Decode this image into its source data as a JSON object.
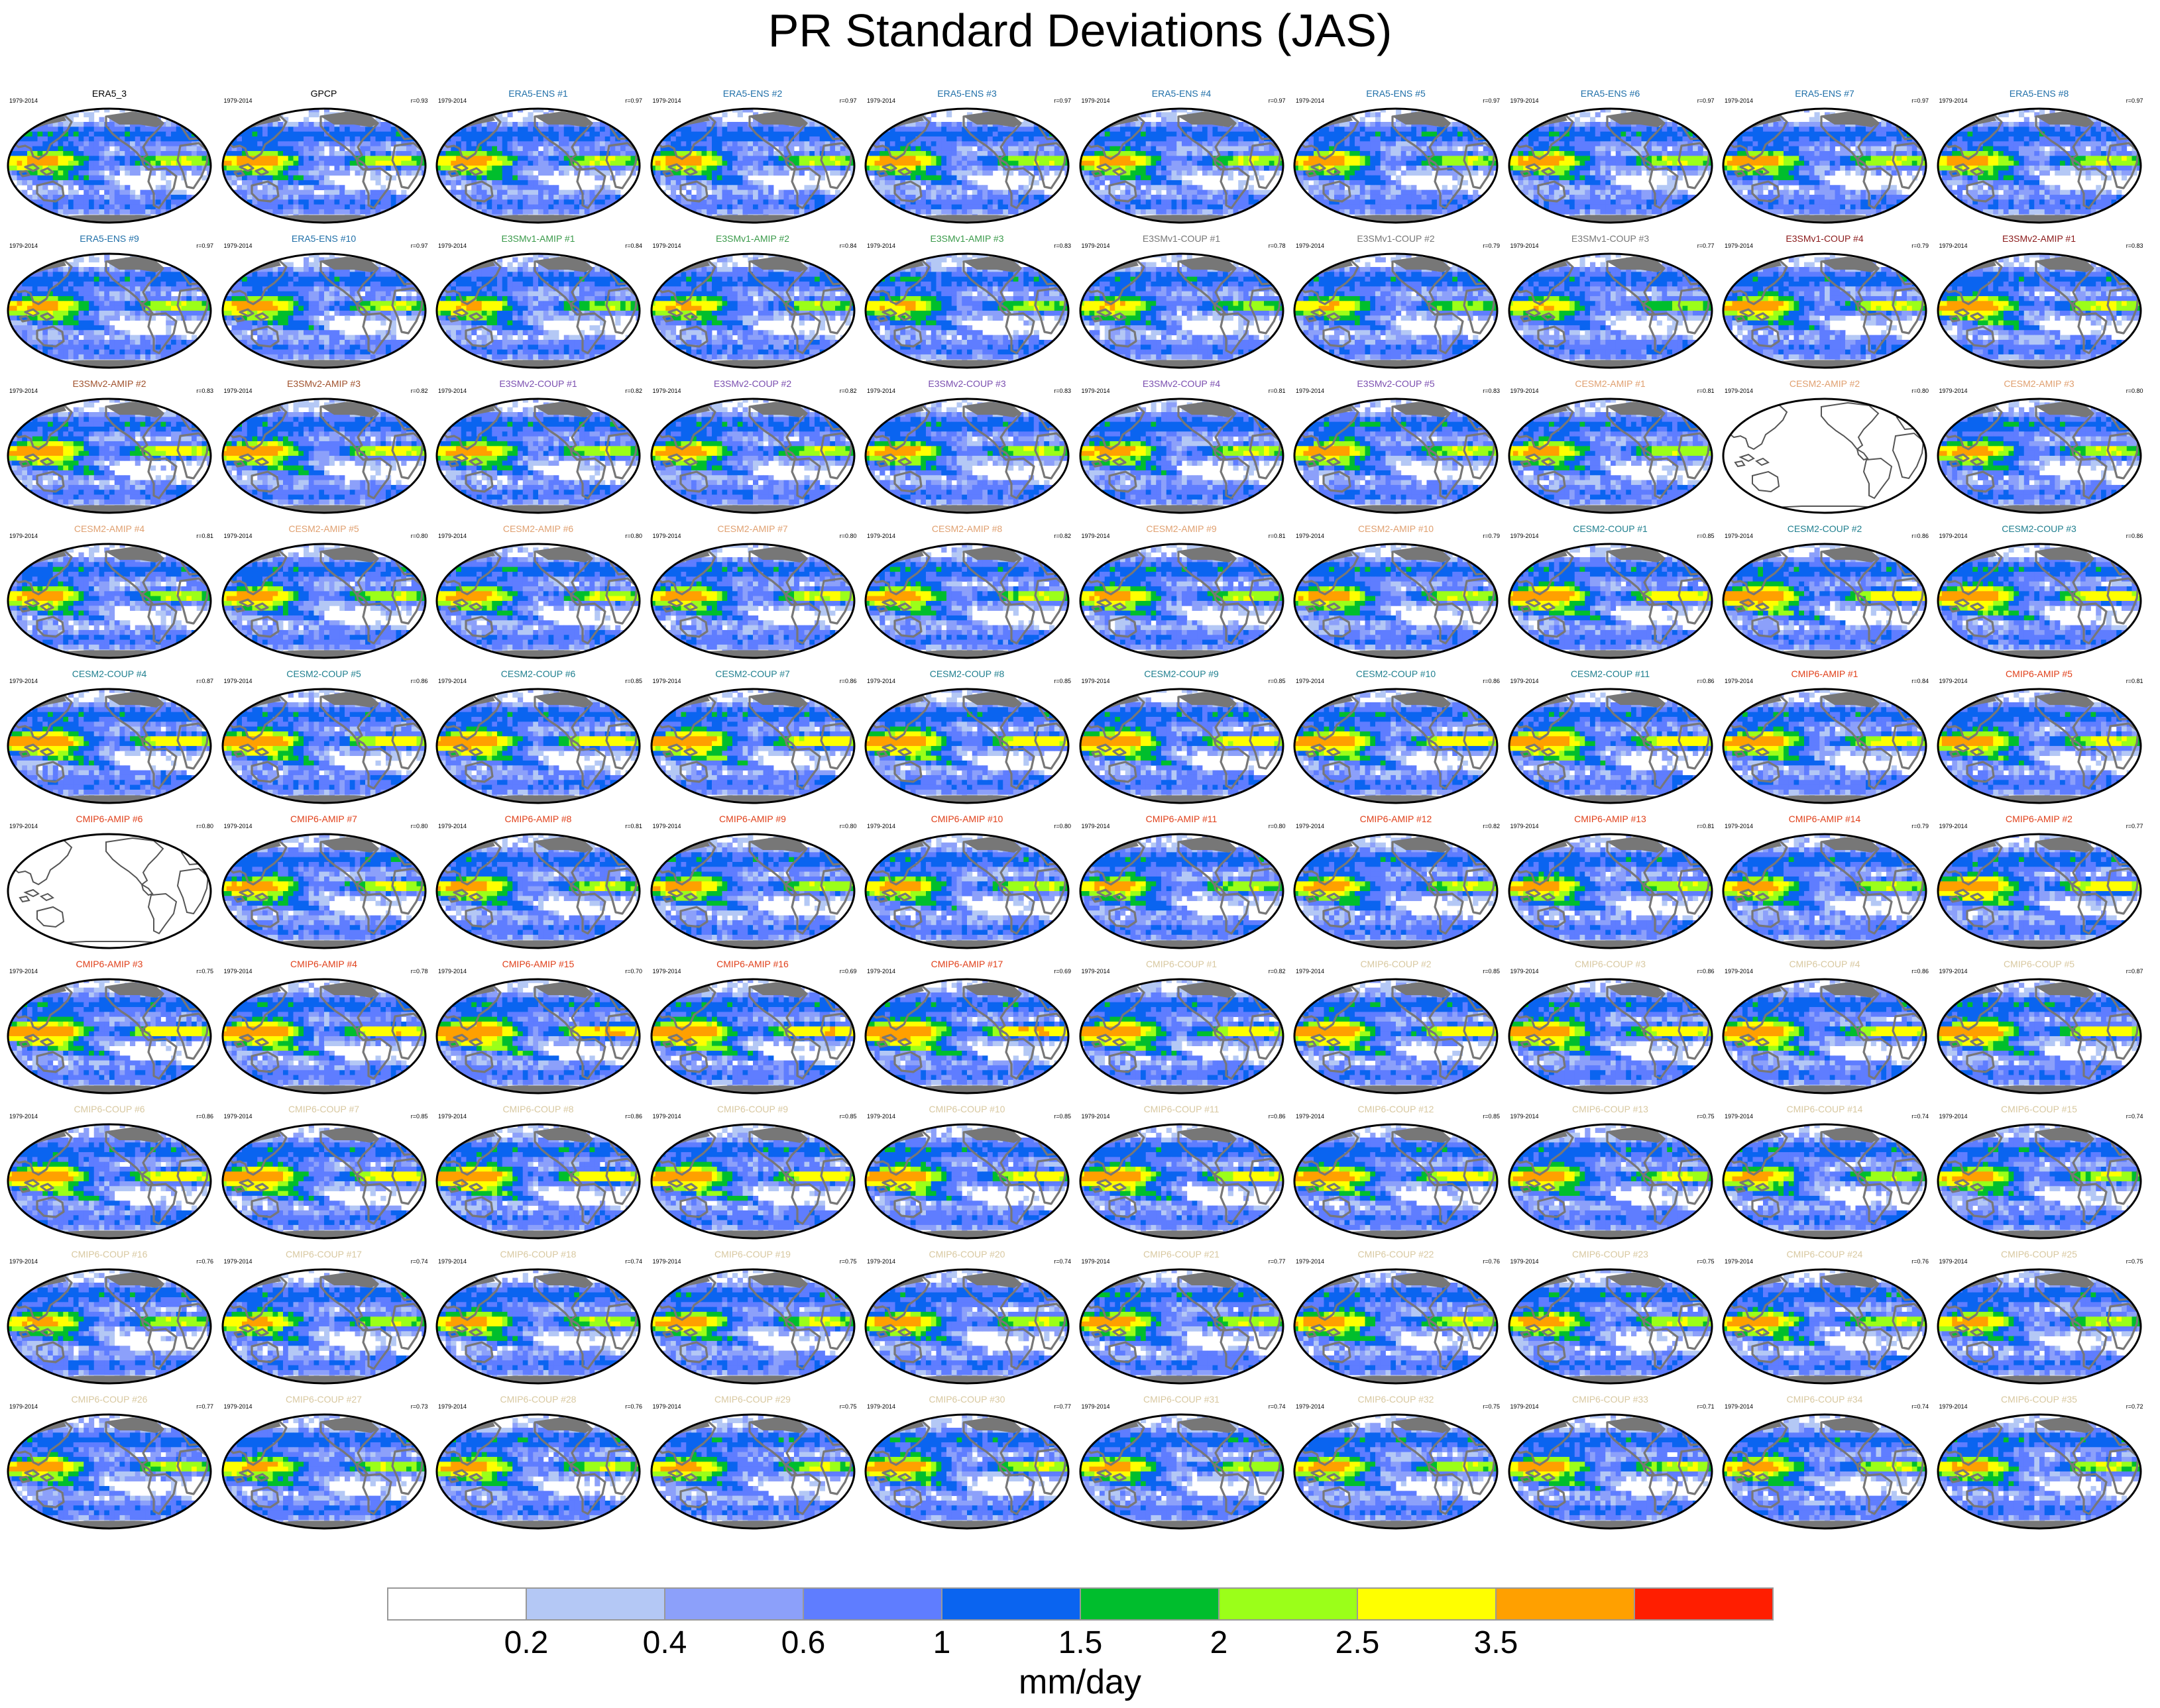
{
  "title": "PR Standard Deviations (JAS)",
  "date_range": "1979-2014",
  "colors": {
    "land": "#777777",
    "levels": [
      "#ffffff",
      "#b4c8f5",
      "#8ca0fa",
      "#5f7dff",
      "#0a64f0",
      "#00be2d",
      "#9bff19",
      "#ffff00",
      "#ffa000",
      "#ff1e00"
    ]
  },
  "chart_data": {
    "type": "heatmap",
    "description_title": "PR Standard Deviations (JAS)",
    "colorbar": {
      "ticks": [
        "0.2",
        "0.4",
        "0.6",
        "1",
        "1.5",
        "2",
        "2.5",
        "3.5"
      ],
      "units": "mm/day"
    },
    "panels": [
      {
        "title": "ERA5_3",
        "corr": "",
        "color": "#000000",
        "empty": false,
        "intensity": 1.0
      },
      {
        "title": "GPCP",
        "corr": "r=0.93",
        "color": "#000000",
        "empty": false,
        "intensity": 1.0
      },
      {
        "title": "ERA5-ENS  #1",
        "corr": "r=0.97",
        "color": "#1f6fa8",
        "empty": false,
        "intensity": 1.0
      },
      {
        "title": "ERA5-ENS  #2",
        "corr": "r=0.97",
        "color": "#1f6fa8",
        "empty": false,
        "intensity": 1.0
      },
      {
        "title": "ERA5-ENS  #3",
        "corr": "r=0.97",
        "color": "#1f6fa8",
        "empty": false,
        "intensity": 1.0
      },
      {
        "title": "ERA5-ENS  #4",
        "corr": "r=0.97",
        "color": "#1f6fa8",
        "empty": false,
        "intensity": 1.0
      },
      {
        "title": "ERA5-ENS  #5",
        "corr": "r=0.97",
        "color": "#1f6fa8",
        "empty": false,
        "intensity": 1.0
      },
      {
        "title": "ERA5-ENS  #6",
        "corr": "r=0.97",
        "color": "#1f6fa8",
        "empty": false,
        "intensity": 1.0
      },
      {
        "title": "ERA5-ENS  #7",
        "corr": "r=0.97",
        "color": "#1f6fa8",
        "empty": false,
        "intensity": 1.0
      },
      {
        "title": "ERA5-ENS  #8",
        "corr": "r=0.97",
        "color": "#1f6fa8",
        "empty": false,
        "intensity": 1.0
      },
      {
        "title": "ERA5-ENS  #9",
        "corr": "r=0.97",
        "color": "#1f6fa8",
        "empty": false,
        "intensity": 1.0
      },
      {
        "title": "ERA5-ENS  #10",
        "corr": "r=0.97",
        "color": "#1f6fa8",
        "empty": false,
        "intensity": 1.0
      },
      {
        "title": "E3SMv1-AMIP #1",
        "corr": "r=0.84",
        "color": "#3a9a4a",
        "empty": false,
        "intensity": 0.9
      },
      {
        "title": "E3SMv1-AMIP #2",
        "corr": "r=0.84",
        "color": "#3a9a4a",
        "empty": false,
        "intensity": 0.9
      },
      {
        "title": "E3SMv1-AMIP #3",
        "corr": "r=0.83",
        "color": "#3a9a4a",
        "empty": false,
        "intensity": 0.9
      },
      {
        "title": "E3SMv1-COUP #1",
        "corr": "r=0.78",
        "color": "#777777",
        "empty": false,
        "intensity": 0.85
      },
      {
        "title": "E3SMv1-COUP #2",
        "corr": "r=0.79",
        "color": "#777777",
        "empty": false,
        "intensity": 0.85
      },
      {
        "title": "E3SMv1-COUP #3",
        "corr": "r=0.77",
        "color": "#777777",
        "empty": false,
        "intensity": 0.85
      },
      {
        "title": "E3SMv1-COUP #4",
        "corr": "r=0.79",
        "color": "#8b1a1a",
        "empty": false,
        "intensity": 1.1
      },
      {
        "title": "E3SMv2-AMIP #1",
        "corr": "r=0.83",
        "color": "#8b1a1a",
        "empty": false,
        "intensity": 1.15
      },
      {
        "title": "E3SMv2-AMIP #2",
        "corr": "r=0.83",
        "color": "#a0522d",
        "empty": false,
        "intensity": 1.15
      },
      {
        "title": "E3SMv2-AMIP #3",
        "corr": "r=0.82",
        "color": "#a0522d",
        "empty": false,
        "intensity": 1.15
      },
      {
        "title": "E3SMv2-COUP #1",
        "corr": "r=0.82",
        "color": "#7b4fb0",
        "empty": false,
        "intensity": 1.0
      },
      {
        "title": "E3SMv2-COUP #2",
        "corr": "r=0.82",
        "color": "#7b4fb0",
        "empty": false,
        "intensity": 1.0
      },
      {
        "title": "E3SMv2-COUP #3",
        "corr": "r=0.83",
        "color": "#7b4fb0",
        "empty": false,
        "intensity": 1.0
      },
      {
        "title": "E3SMv2-COUP #4",
        "corr": "r=0.81",
        "color": "#7b4fb0",
        "empty": false,
        "intensity": 1.0
      },
      {
        "title": "E3SMv2-COUP #5",
        "corr": "r=0.83",
        "color": "#7b4fb0",
        "empty": false,
        "intensity": 1.0
      },
      {
        "title": "CESM2-AMIP #1",
        "corr": "r=0.81",
        "color": "#e0a070",
        "empty": false,
        "intensity": 1.0
      },
      {
        "title": "CESM2-AMIP #2",
        "corr": "r=0.80",
        "color": "#e0a070",
        "empty": true,
        "intensity": 0
      },
      {
        "title": "CESM2-AMIP #3",
        "corr": "r=0.80",
        "color": "#e0a070",
        "empty": false,
        "intensity": 1.0
      },
      {
        "title": "CESM2-AMIP #4",
        "corr": "r=0.81",
        "color": "#e0a070",
        "empty": false,
        "intensity": 1.0
      },
      {
        "title": "CESM2-AMIP #5",
        "corr": "r=0.80",
        "color": "#e0a070",
        "empty": false,
        "intensity": 1.0
      },
      {
        "title": "CESM2-AMIP #6",
        "corr": "r=0.80",
        "color": "#e0a070",
        "empty": false,
        "intensity": 1.0
      },
      {
        "title": "CESM2-AMIP #7",
        "corr": "r=0.80",
        "color": "#e0a070",
        "empty": false,
        "intensity": 1.0
      },
      {
        "title": "CESM2-AMIP #8",
        "corr": "r=0.82",
        "color": "#e0a070",
        "empty": false,
        "intensity": 1.0
      },
      {
        "title": "CESM2-AMIP #9",
        "corr": "r=0.81",
        "color": "#e0a070",
        "empty": false,
        "intensity": 1.0
      },
      {
        "title": "CESM2-AMIP #10",
        "corr": "r=0.79",
        "color": "#e0a070",
        "empty": false,
        "intensity": 1.0
      },
      {
        "title": "CESM2-COUP #1",
        "corr": "r=0.85",
        "color": "#1f7f8f",
        "empty": false,
        "intensity": 1.3
      },
      {
        "title": "CESM2-COUP #2",
        "corr": "r=0.86",
        "color": "#1f7f8f",
        "empty": false,
        "intensity": 1.3
      },
      {
        "title": "CESM2-COUP #3",
        "corr": "r=0.86",
        "color": "#1f7f8f",
        "empty": false,
        "intensity": 1.3
      },
      {
        "title": "CESM2-COUP #4",
        "corr": "r=0.87",
        "color": "#1f7f8f",
        "empty": false,
        "intensity": 1.3
      },
      {
        "title": "CESM2-COUP #5",
        "corr": "r=0.86",
        "color": "#1f7f8f",
        "empty": false,
        "intensity": 1.3
      },
      {
        "title": "CESM2-COUP #6",
        "corr": "r=0.85",
        "color": "#1f7f8f",
        "empty": false,
        "intensity": 1.3
      },
      {
        "title": "CESM2-COUP #7",
        "corr": "r=0.86",
        "color": "#1f7f8f",
        "empty": false,
        "intensity": 1.3
      },
      {
        "title": "CESM2-COUP #8",
        "corr": "r=0.85",
        "color": "#1f7f8f",
        "empty": false,
        "intensity": 1.3
      },
      {
        "title": "CESM2-COUP #9",
        "corr": "r=0.85",
        "color": "#1f7f8f",
        "empty": false,
        "intensity": 1.3
      },
      {
        "title": "CESM2-COUP #10",
        "corr": "r=0.86",
        "color": "#1f7f8f",
        "empty": false,
        "intensity": 1.3
      },
      {
        "title": "CESM2-COUP #11",
        "corr": "r=0.86",
        "color": "#1f7f8f",
        "empty": false,
        "intensity": 1.3
      },
      {
        "title": "CMIP6-AMIP #1",
        "corr": "r=0.84",
        "color": "#e0401a",
        "empty": false,
        "intensity": 1.2
      },
      {
        "title": "CMIP6-AMIP #5",
        "corr": "r=0.81",
        "color": "#e0401a",
        "empty": false,
        "intensity": 1.1
      },
      {
        "title": "CMIP6-AMIP #6",
        "corr": "r=0.80",
        "color": "#e0401a",
        "empty": true,
        "intensity": 0
      },
      {
        "title": "CMIP6-AMIP #7",
        "corr": "r=0.80",
        "color": "#e0401a",
        "empty": false,
        "intensity": 1.0
      },
      {
        "title": "CMIP6-AMIP #8",
        "corr": "r=0.81",
        "color": "#e0401a",
        "empty": false,
        "intensity": 1.0
      },
      {
        "title": "CMIP6-AMIP #9",
        "corr": "r=0.80",
        "color": "#e0401a",
        "empty": false,
        "intensity": 1.0
      },
      {
        "title": "CMIP6-AMIP #10",
        "corr": "r=0.80",
        "color": "#e0401a",
        "empty": false,
        "intensity": 1.0
      },
      {
        "title": "CMIP6-AMIP #11",
        "corr": "r=0.80",
        "color": "#e0401a",
        "empty": false,
        "intensity": 0.95
      },
      {
        "title": "CMIP6-AMIP #12",
        "corr": "r=0.82",
        "color": "#e0401a",
        "empty": false,
        "intensity": 1.0
      },
      {
        "title": "CMIP6-AMIP #13",
        "corr": "r=0.81",
        "color": "#e0401a",
        "empty": false,
        "intensity": 1.0
      },
      {
        "title": "CMIP6-AMIP #14",
        "corr": "r=0.79",
        "color": "#e0401a",
        "empty": false,
        "intensity": 1.0
      },
      {
        "title": "CMIP6-AMIP #2",
        "corr": "r=0.77",
        "color": "#e0401a",
        "empty": false,
        "intensity": 1.3
      },
      {
        "title": "CMIP6-AMIP #3",
        "corr": "r=0.75",
        "color": "#e0401a",
        "empty": false,
        "intensity": 1.35
      },
      {
        "title": "CMIP6-AMIP #4",
        "corr": "r=0.78",
        "color": "#e0401a",
        "empty": false,
        "intensity": 1.35
      },
      {
        "title": "CMIP6-AMIP #15",
        "corr": "r=0.70",
        "color": "#e0401a",
        "empty": false,
        "intensity": 1.5
      },
      {
        "title": "CMIP6-AMIP #16",
        "corr": "r=0.69",
        "color": "#e0401a",
        "empty": false,
        "intensity": 1.5
      },
      {
        "title": "CMIP6-AMIP #17",
        "corr": "r=0.69",
        "color": "#e0401a",
        "empty": false,
        "intensity": 1.5
      },
      {
        "title": "CMIP6-COUP #1",
        "corr": "r=0.82",
        "color": "#d8c8a0",
        "empty": false,
        "intensity": 1.3
      },
      {
        "title": "CMIP6-COUP #2",
        "corr": "r=0.85",
        "color": "#d8c8a0",
        "empty": false,
        "intensity": 1.3
      },
      {
        "title": "CMIP6-COUP #3",
        "corr": "r=0.86",
        "color": "#d8c8a0",
        "empty": false,
        "intensity": 1.3
      },
      {
        "title": "CMIP6-COUP #4",
        "corr": "r=0.86",
        "color": "#d8c8a0",
        "empty": false,
        "intensity": 1.3
      },
      {
        "title": "CMIP6-COUP #5",
        "corr": "r=0.87",
        "color": "#d8c8a0",
        "empty": false,
        "intensity": 1.3
      },
      {
        "title": "CMIP6-COUP #6",
        "corr": "r=0.86",
        "color": "#d8c8a0",
        "empty": false,
        "intensity": 1.3
      },
      {
        "title": "CMIP6-COUP #7",
        "corr": "r=0.85",
        "color": "#d8c8a0",
        "empty": false,
        "intensity": 1.3
      },
      {
        "title": "CMIP6-COUP #8",
        "corr": "r=0.86",
        "color": "#d8c8a0",
        "empty": false,
        "intensity": 1.3
      },
      {
        "title": "CMIP6-COUP #9",
        "corr": "r=0.85",
        "color": "#d8c8a0",
        "empty": false,
        "intensity": 1.25
      },
      {
        "title": "CMIP6-COUP #10",
        "corr": "r=0.85",
        "color": "#d8c8a0",
        "empty": false,
        "intensity": 1.2
      },
      {
        "title": "CMIP6-COUP #11",
        "corr": "r=0.86",
        "color": "#d8c8a0",
        "empty": false,
        "intensity": 1.25
      },
      {
        "title": "CMIP6-COUP #12",
        "corr": "r=0.85",
        "color": "#d8c8a0",
        "empty": false,
        "intensity": 1.2
      },
      {
        "title": "CMIP6-COUP #13",
        "corr": "r=0.75",
        "color": "#d8c8a0",
        "empty": false,
        "intensity": 1.05
      },
      {
        "title": "CMIP6-COUP #14",
        "corr": "r=0.74",
        "color": "#d8c8a0",
        "empty": false,
        "intensity": 0.95
      },
      {
        "title": "CMIP6-COUP #15",
        "corr": "r=0.74",
        "color": "#d8c8a0",
        "empty": false,
        "intensity": 1.0
      },
      {
        "title": "CMIP6-COUP #16",
        "corr": "r=0.76",
        "color": "#d8c8a0",
        "empty": false,
        "intensity": 0.95
      },
      {
        "title": "CMIP6-COUP #17",
        "corr": "r=0.74",
        "color": "#d8c8a0",
        "empty": false,
        "intensity": 0.95
      },
      {
        "title": "CMIP6-COUP #18",
        "corr": "r=0.74",
        "color": "#d8c8a0",
        "empty": false,
        "intensity": 1.0
      },
      {
        "title": "CMIP6-COUP #19",
        "corr": "r=0.75",
        "color": "#d8c8a0",
        "empty": false,
        "intensity": 1.0
      },
      {
        "title": "CMIP6-COUP #20",
        "corr": "r=0.74",
        "color": "#d8c8a0",
        "empty": false,
        "intensity": 1.0
      },
      {
        "title": "CMIP6-COUP #21",
        "corr": "r=0.77",
        "color": "#d8c8a0",
        "empty": false,
        "intensity": 1.0
      },
      {
        "title": "CMIP6-COUP #22",
        "corr": "r=0.76",
        "color": "#d8c8a0",
        "empty": false,
        "intensity": 1.05
      },
      {
        "title": "CMIP6-COUP #23",
        "corr": "r=0.75",
        "color": "#d8c8a0",
        "empty": false,
        "intensity": 1.0
      },
      {
        "title": "CMIP6-COUP #24",
        "corr": "r=0.76",
        "color": "#d8c8a0",
        "empty": false,
        "intensity": 1.05
      },
      {
        "title": "CMIP6-COUP #25",
        "corr": "r=0.75",
        "color": "#d8c8a0",
        "empty": false,
        "intensity": 0.95
      },
      {
        "title": "CMIP6-COUP #26",
        "corr": "r=0.77",
        "color": "#d8c8a0",
        "empty": false,
        "intensity": 1.0
      },
      {
        "title": "CMIP6-COUP #27",
        "corr": "r=0.73",
        "color": "#d8c8a0",
        "empty": false,
        "intensity": 0.95
      },
      {
        "title": "CMIP6-COUP #28",
        "corr": "r=0.76",
        "color": "#d8c8a0",
        "empty": false,
        "intensity": 1.0
      },
      {
        "title": "CMIP6-COUP #29",
        "corr": "r=0.75",
        "color": "#d8c8a0",
        "empty": false,
        "intensity": 0.95
      },
      {
        "title": "CMIP6-COUP #30",
        "corr": "r=0.77",
        "color": "#d8c8a0",
        "empty": false,
        "intensity": 1.05
      },
      {
        "title": "CMIP6-COUP #31",
        "corr": "r=0.74",
        "color": "#d8c8a0",
        "empty": false,
        "intensity": 0.95
      },
      {
        "title": "CMIP6-COUP #32",
        "corr": "r=0.75",
        "color": "#d8c8a0",
        "empty": false,
        "intensity": 1.0
      },
      {
        "title": "CMIP6-COUP #33",
        "corr": "r=0.71",
        "color": "#d8c8a0",
        "empty": false,
        "intensity": 1.05
      },
      {
        "title": "CMIP6-COUP #34",
        "corr": "r=0.74",
        "color": "#d8c8a0",
        "empty": false,
        "intensity": 1.0
      },
      {
        "title": "CMIP6-COUP #35",
        "corr": "r=0.72",
        "color": "#d8c8a0",
        "empty": false,
        "intensity": 0.95
      }
    ]
  }
}
